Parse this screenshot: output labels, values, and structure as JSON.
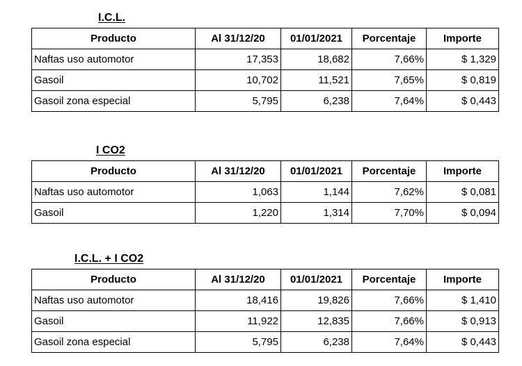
{
  "headers": {
    "producto": "Producto",
    "al_311220": "Al 31/12/20",
    "fecha_2021": "01/01/2021",
    "porcentaje": "Porcentaje",
    "importe": "Importe"
  },
  "tables": [
    {
      "title": "I.C.L.",
      "rows": [
        [
          "Naftas uso automotor",
          "17,353",
          "18,682",
          "7,66%",
          "$ 1,329"
        ],
        [
          "Gasoil",
          "10,702",
          "11,521",
          "7,65%",
          "$ 0,819"
        ],
        [
          "Gasoil zona especial",
          "5,795",
          "6,238",
          "7,64%",
          "$ 0,443"
        ]
      ]
    },
    {
      "title": "I CO2",
      "rows": [
        [
          "Naftas uso automotor",
          "1,063",
          "1,144",
          "7,62%",
          "$ 0,081"
        ],
        [
          "Gasoil",
          "1,220",
          "1,314",
          "7,70%",
          "$ 0,094"
        ]
      ]
    },
    {
      "title": "I.C.L. + I CO2",
      "rows": [
        [
          "Naftas uso automotor",
          "18,416",
          "19,826",
          "7,66%",
          "$ 1,410"
        ],
        [
          "Gasoil",
          "11,922",
          "12,835",
          "7,66%",
          "$ 0,913"
        ],
        [
          "Gasoil zona especial",
          "5,795",
          "6,238",
          "7,64%",
          "$ 0,443"
        ]
      ]
    }
  ]
}
